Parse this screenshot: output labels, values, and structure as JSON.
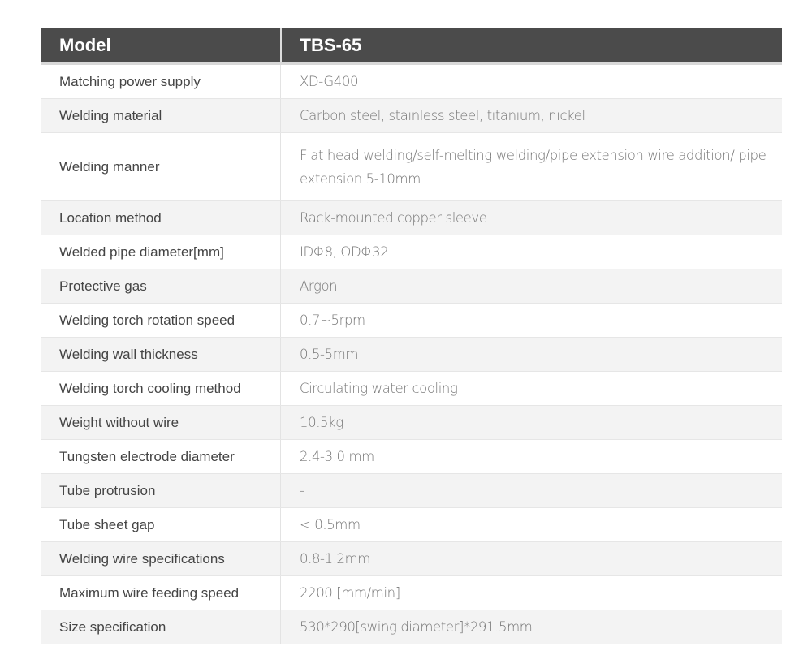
{
  "header": {
    "label": "Model",
    "value": "TBS-65"
  },
  "rows": [
    {
      "label": "Matching power supply",
      "value": "XD-G400"
    },
    {
      "label": "Welding material",
      "value": "Carbon steel, stainless steel, titanium, nickel"
    },
    {
      "label": "Welding manner",
      "value": "Flat head welding/self-melting welding/pipe extension wire addition/ pipe extension 5-10mm"
    },
    {
      "label": "Location method",
      "value": "Rack-mounted copper sleeve"
    },
    {
      "label": "Welded pipe diameter[mm]",
      "value": "IDΦ8, ODΦ32"
    },
    {
      "label": "Protective gas",
      "value": "Argon"
    },
    {
      "label": "Welding torch rotation speed",
      "value": "0.7~5rpm"
    },
    {
      "label": "Welding wall thickness",
      "value": "0.5-5mm"
    },
    {
      "label": "Welding torch cooling method",
      "value": "Circulating water cooling"
    },
    {
      "label": "Weight without wire",
      "value": "10.5kg"
    },
    {
      "label": "Tungsten electrode diameter",
      "value": "2.4-3.0 mm"
    },
    {
      "label": "Tube protrusion",
      "value": "-"
    },
    {
      "label": "Tube sheet gap",
      "value": "< 0.5mm"
    },
    {
      "label": "Welding wire specifications",
      "value": "0.8-1.2mm"
    },
    {
      "label": "Maximum wire feeding speed",
      "value": "2200 [mm/min]"
    },
    {
      "label": "Size specification",
      "value": "530*290[swing diameter]*291.5mm"
    }
  ]
}
